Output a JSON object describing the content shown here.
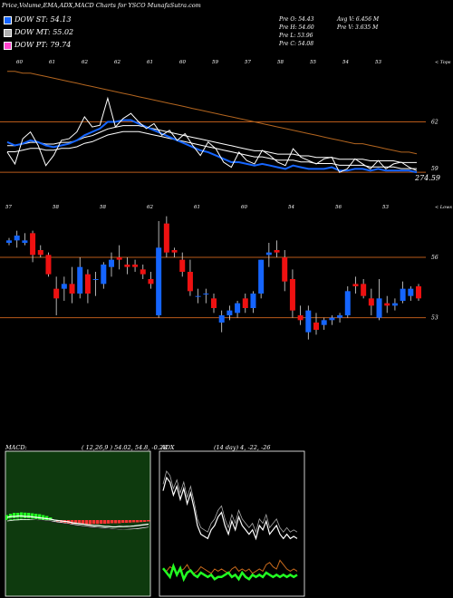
{
  "header": {
    "title": "Price,Volume,EMA,ADX,MACD Charts for YSCO MunafaSutra.com"
  },
  "legend": [
    {
      "label": "DOW ST: 54.13",
      "color": "#1565ff"
    },
    {
      "label": "DOW MT: 55.02",
      "color": "#b0b0b0"
    },
    {
      "label": "DOW PT: 79.74",
      "color": "#ff44cc"
    }
  ],
  "stats": {
    "open": "Pre O: 54.43",
    "high": "Pre H: 54.60",
    "low": "Pre L: 53.96",
    "close": "Pre C: 54.08",
    "avg_volume": "Avg V: 6.456 M",
    "volume": "Pre V: 3.635 M"
  },
  "chart_data": [
    {
      "type": "line",
      "name": "price-ema-panel",
      "right_label": "< Tops",
      "price_labels": [
        "62",
        "59",
        "274.59"
      ],
      "top_labels": [
        "60",
        "61",
        "62",
        "62",
        "61",
        "60",
        "59",
        "57",
        "58",
        "55",
        "54",
        "53"
      ],
      "levels": [
        62,
        59
      ],
      "ylim": [
        58.2,
        65.8
      ],
      "close": [
        60.2,
        59.5,
        61.0,
        61.4,
        60.6,
        59.4,
        60.0,
        60.9,
        61.0,
        61.4,
        62.3,
        61.7,
        61.8,
        63.4,
        61.7,
        62.2,
        62.5,
        62.0,
        61.6,
        61.9,
        61.2,
        61.5,
        60.9,
        61.3,
        60.6,
        60.0,
        60.8,
        60.4,
        59.6,
        59.3,
        60.2,
        59.7,
        59.5,
        60.3,
        60.0,
        59.6,
        59.4,
        60.4,
        59.9,
        59.7,
        59.5,
        59.8,
        59.9,
        59.0,
        59.2,
        59.8,
        59.5,
        59.2,
        59.7,
        59.2,
        59.5,
        59.6,
        59.3,
        59.1
      ],
      "ema_short": [
        60.8,
        60.6,
        60.7,
        60.9,
        60.8,
        60.6,
        60.5,
        60.6,
        60.7,
        60.9,
        61.2,
        61.4,
        61.6,
        62.0,
        62.0,
        62.1,
        62.1,
        61.9,
        61.7,
        61.5,
        61.3,
        61.1,
        60.9,
        60.7,
        60.5,
        60.3,
        60.2,
        60.0,
        59.8,
        59.6,
        59.6,
        59.5,
        59.4,
        59.5,
        59.4,
        59.3,
        59.2,
        59.4,
        59.3,
        59.2,
        59.2,
        59.2,
        59.3,
        59.1,
        59.1,
        59.2,
        59.2,
        59.1,
        59.2,
        59.1,
        59.1,
        59.1,
        59.1,
        59.0
      ],
      "ema_mid": [
        60.4,
        60.4,
        60.5,
        60.6,
        60.6,
        60.5,
        60.5,
        60.6,
        60.6,
        60.7,
        60.9,
        61.0,
        61.2,
        61.4,
        61.5,
        61.6,
        61.6,
        61.6,
        61.5,
        61.4,
        61.3,
        61.2,
        61.1,
        61.0,
        60.9,
        60.8,
        60.7,
        60.6,
        60.5,
        60.4,
        60.3,
        60.2,
        60.1,
        60.1,
        60.0,
        59.9,
        59.9,
        59.9,
        59.8,
        59.8,
        59.7,
        59.7,
        59.7,
        59.6,
        59.6,
        59.6,
        59.6,
        59.5,
        59.5,
        59.5,
        59.5,
        59.4,
        59.4,
        59.4
      ],
      "ema_long": [
        65.0,
        65.0,
        64.9,
        64.9,
        64.8,
        64.7,
        64.6,
        64.5,
        64.4,
        64.3,
        64.2,
        64.1,
        64.0,
        63.9,
        63.8,
        63.7,
        63.6,
        63.5,
        63.4,
        63.3,
        63.2,
        63.1,
        63.0,
        62.9,
        62.8,
        62.7,
        62.6,
        62.5,
        62.4,
        62.3,
        62.2,
        62.1,
        62.0,
        61.9,
        61.8,
        61.7,
        61.6,
        61.5,
        61.4,
        61.3,
        61.2,
        61.1,
        61.0,
        60.9,
        60.8,
        60.7,
        60.7,
        60.6,
        60.5,
        60.4,
        60.3,
        60.2,
        60.2,
        60.1
      ]
    },
    {
      "type": "candlestick",
      "name": "candle-panel",
      "right_label": "< Lows",
      "price_labels": [
        "56",
        "53"
      ],
      "top_labels": [
        "57",
        "58",
        "58",
        "62",
        "61",
        "60",
        "54",
        "56",
        "53"
      ],
      "levels": [
        55.9,
        53.4
      ],
      "ylim": [
        52.6,
        58.3
      ],
      "ohlc": [
        [
          56.5,
          56.7,
          56.4,
          56.6
        ],
        [
          56.6,
          57.0,
          56.3,
          56.8
        ],
        [
          56.5,
          56.9,
          56.4,
          56.6
        ],
        [
          56.9,
          57.0,
          55.7,
          56.0
        ],
        [
          56.2,
          56.4,
          55.9,
          56.0
        ],
        [
          56.0,
          56.1,
          55.1,
          55.2
        ],
        [
          54.6,
          55.1,
          53.5,
          54.2
        ],
        [
          54.6,
          55.1,
          54.1,
          54.8
        ],
        [
          54.8,
          55.5,
          54.0,
          54.4
        ],
        [
          54.4,
          55.9,
          54.2,
          55.5
        ],
        [
          55.2,
          55.4,
          54.0,
          54.4
        ],
        [
          55.0,
          55.3,
          54.3,
          55.0
        ],
        [
          54.8,
          55.7,
          54.6,
          55.6
        ],
        [
          55.5,
          56.1,
          55.1,
          55.8
        ],
        [
          55.9,
          56.4,
          55.4,
          55.8
        ],
        [
          55.6,
          55.9,
          55.2,
          55.5
        ],
        [
          55.6,
          55.8,
          55.3,
          55.5
        ],
        [
          55.4,
          55.6,
          55.0,
          55.2
        ],
        [
          55.0,
          55.3,
          54.6,
          54.8
        ],
        [
          53.5,
          57.4,
          53.4,
          56.3
        ],
        [
          57.3,
          57.6,
          55.9,
          56.1
        ],
        [
          56.2,
          56.3,
          55.9,
          56.1
        ],
        [
          55.8,
          56.1,
          55.1,
          55.3
        ],
        [
          55.3,
          55.8,
          54.3,
          54.5
        ],
        [
          54.3,
          54.6,
          54.0,
          54.3
        ],
        [
          54.4,
          54.6,
          54.0,
          54.4
        ],
        [
          54.2,
          54.4,
          53.6,
          53.8
        ],
        [
          53.2,
          53.7,
          52.8,
          53.5
        ],
        [
          53.5,
          53.9,
          53.3,
          53.7
        ],
        [
          53.6,
          54.1,
          53.4,
          54.0
        ],
        [
          54.2,
          54.4,
          53.6,
          53.8
        ],
        [
          53.8,
          54.5,
          53.6,
          54.4
        ],
        [
          54.4,
          55.8,
          54.2,
          55.8
        ],
        [
          56.0,
          56.5,
          55.5,
          56.1
        ],
        [
          56.2,
          56.6,
          55.9,
          56.1
        ],
        [
          55.9,
          56.2,
          54.5,
          54.9
        ],
        [
          55.0,
          55.4,
          53.4,
          53.7
        ],
        [
          53.5,
          53.9,
          53.1,
          53.3
        ],
        [
          52.8,
          53.9,
          52.5,
          53.7
        ],
        [
          53.2,
          53.6,
          52.7,
          52.9
        ],
        [
          53.1,
          53.4,
          52.9,
          53.3
        ],
        [
          53.3,
          53.5,
          53.1,
          53.4
        ],
        [
          53.4,
          53.6,
          53.2,
          53.5
        ],
        [
          53.5,
          54.7,
          53.4,
          54.5
        ],
        [
          54.8,
          55.1,
          54.4,
          54.7
        ],
        [
          54.8,
          55.0,
          54.2,
          54.3
        ],
        [
          54.2,
          54.6,
          53.5,
          53.9
        ],
        [
          53.4,
          55.0,
          53.3,
          54.2
        ],
        [
          54.0,
          54.3,
          53.6,
          53.9
        ],
        [
          53.9,
          54.2,
          53.7,
          54.0
        ],
        [
          54.1,
          54.9,
          54.0,
          54.6
        ],
        [
          54.3,
          54.7,
          54.1,
          54.6
        ],
        [
          54.7,
          54.8,
          54.1,
          54.2
        ]
      ]
    },
    {
      "type": "macd",
      "name": "macd-panel",
      "title": "MACD:",
      "params": "( 12,26,9 ) 54.02, 54.8, -0.28",
      "ylim": [
        -3,
        3
      ],
      "macd": [
        0.3,
        0.4,
        0.4,
        0.45,
        0.45,
        0.4,
        0.4,
        0.35,
        0.3,
        0.25,
        0.2,
        0.15,
        0.1,
        0.0,
        -0.05,
        -0.1,
        -0.15,
        -0.2,
        -0.3,
        -0.35,
        -0.4,
        -0.45,
        -0.5,
        -0.55,
        -0.6,
        -0.6,
        -0.65,
        -0.7,
        -0.7,
        -0.75,
        -0.75,
        -0.7,
        -0.72,
        -0.7,
        -0.68,
        -0.65,
        -0.6,
        -0.55,
        -0.5,
        -0.45
      ],
      "signal": [
        0.2,
        0.25,
        0.3,
        0.32,
        0.35,
        0.36,
        0.36,
        0.35,
        0.34,
        0.32,
        0.28,
        0.24,
        0.2,
        0.14,
        0.08,
        0.02,
        -0.04,
        -0.1,
        -0.16,
        -0.22,
        -0.28,
        -0.34,
        -0.38,
        -0.42,
        -0.46,
        -0.5,
        -0.54,
        -0.58,
        -0.62,
        -0.65,
        -0.68,
        -0.68,
        -0.69,
        -0.69,
        -0.68,
        -0.66,
        -0.63,
        -0.58,
        -0.52,
        -0.46
      ],
      "histogram": [
        0.55,
        0.7,
        0.8,
        0.8,
        0.85,
        0.82,
        0.8,
        0.75,
        0.7,
        0.65,
        0.55,
        0.45,
        0.3,
        0.05,
        -0.15,
        -0.25,
        -0.3,
        -0.35,
        -0.4,
        -0.42,
        -0.45,
        -0.45,
        -0.45,
        -0.45,
        -0.42,
        -0.42,
        -0.4,
        -0.4,
        -0.38,
        -0.35,
        -0.35,
        -0.35,
        -0.3,
        -0.3,
        -0.28,
        -0.25,
        -0.25,
        -0.22,
        -0.2,
        -0.15
      ]
    },
    {
      "type": "line",
      "name": "adx-panel",
      "title": "ADX",
      "params": "(14 day) 4, -22, -26",
      "ylim": [
        0,
        60
      ],
      "adx": [
        46,
        52,
        50,
        44,
        48,
        42,
        47,
        40,
        45,
        38,
        30,
        26,
        25,
        24,
        28,
        30,
        34,
        36,
        30,
        26,
        32,
        28,
        34,
        30,
        28,
        26,
        28,
        24,
        30,
        28,
        32,
        26,
        28,
        30,
        26,
        24,
        26,
        24,
        25,
        24
      ],
      "plus_di": [
        12,
        10,
        8,
        13,
        9,
        12,
        7,
        10,
        11,
        9,
        8,
        10,
        9,
        8,
        9,
        7,
        8,
        8,
        9,
        10,
        8,
        9,
        7,
        10,
        8,
        7,
        9,
        8,
        9,
        8,
        10,
        9,
        8,
        9,
        8,
        9,
        8,
        9,
        8,
        9
      ],
      "minus_di": [
        10,
        9,
        11,
        10,
        8,
        9,
        10,
        12,
        9,
        8,
        9,
        11,
        10,
        9,
        8,
        10,
        9,
        10,
        9,
        8,
        10,
        11,
        9,
        10,
        9,
        10,
        8,
        9,
        10,
        9,
        12,
        13,
        11,
        10,
        14,
        12,
        10,
        9,
        10,
        9
      ]
    }
  ]
}
